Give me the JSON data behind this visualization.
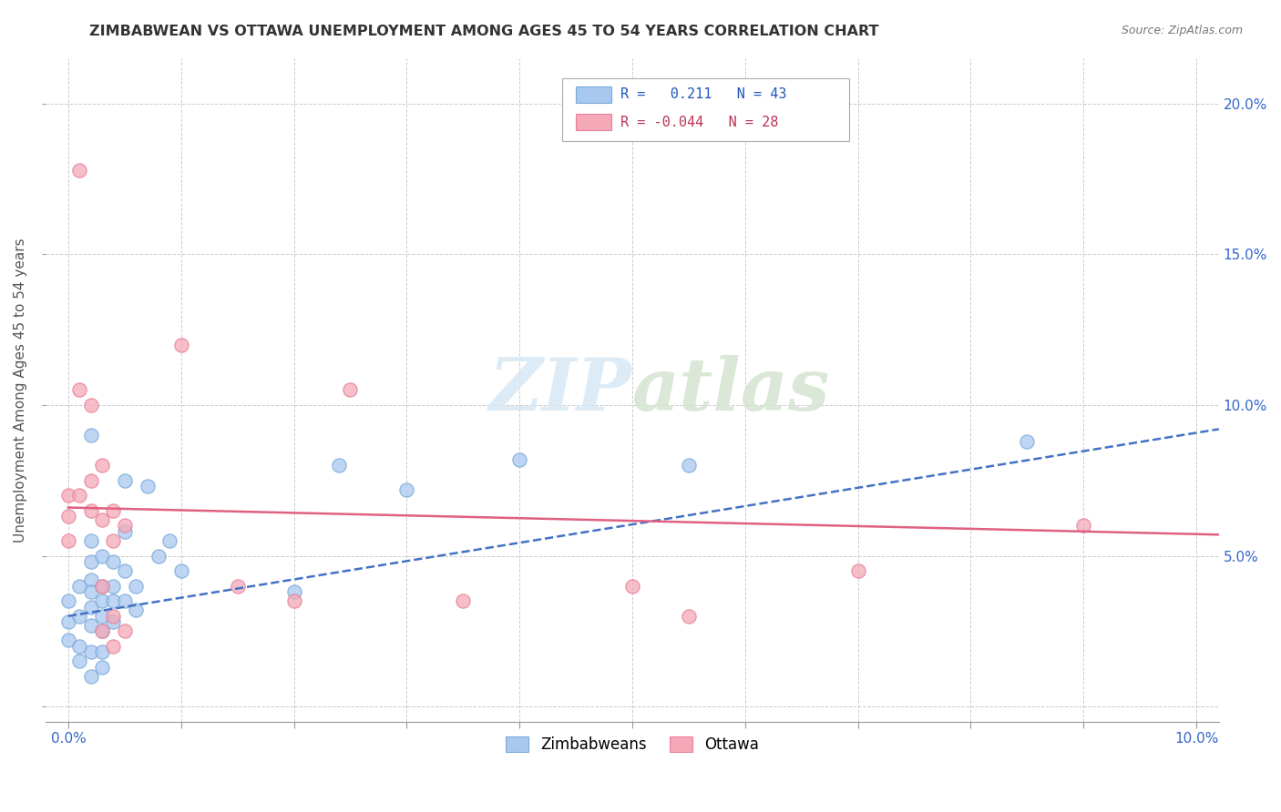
{
  "title": "ZIMBABWEAN VS OTTAWA UNEMPLOYMENT AMONG AGES 45 TO 54 YEARS CORRELATION CHART",
  "source": "Source: ZipAtlas.com",
  "ylabel": "Unemployment Among Ages 45 to 54 years",
  "xlim": [
    -0.002,
    0.102
  ],
  "ylim": [
    -0.005,
    0.215
  ],
  "xticks": [
    0.0,
    0.01,
    0.02,
    0.03,
    0.04,
    0.05,
    0.06,
    0.07,
    0.08,
    0.09,
    0.1
  ],
  "xticklabels": [
    "0.0%",
    "",
    "",
    "",
    "",
    "",
    "",
    "",
    "",
    "",
    "10.0%"
  ],
  "yticks": [
    0.0,
    0.05,
    0.1,
    0.15,
    0.2
  ],
  "yticklabels_left": [
    "",
    "",
    "",
    "",
    ""
  ],
  "yticklabels_right": [
    "",
    "5.0%",
    "10.0%",
    "15.0%",
    "20.0%"
  ],
  "watermark_line1": "ZIP",
  "watermark_line2": "atlas",
  "legend_r_blue": "0.211",
  "legend_n_blue": "43",
  "legend_r_pink": "-0.044",
  "legend_n_pink": "28",
  "blue_color": "#A8C8F0",
  "pink_color": "#F4A8B8",
  "blue_edge_color": "#7BAAD8",
  "pink_edge_color": "#E88098",
  "blue_line_color": "#4472C4",
  "pink_line_color": "#E06080",
  "grid_color": "#CCCCCC",
  "blue_points": [
    [
      0.0,
      0.035
    ],
    [
      0.0,
      0.028
    ],
    [
      0.0,
      0.022
    ],
    [
      0.001,
      0.04
    ],
    [
      0.001,
      0.03
    ],
    [
      0.001,
      0.02
    ],
    [
      0.001,
      0.015
    ],
    [
      0.002,
      0.09
    ],
    [
      0.002,
      0.055
    ],
    [
      0.002,
      0.048
    ],
    [
      0.002,
      0.042
    ],
    [
      0.002,
      0.038
    ],
    [
      0.002,
      0.033
    ],
    [
      0.002,
      0.027
    ],
    [
      0.002,
      0.018
    ],
    [
      0.002,
      0.01
    ],
    [
      0.003,
      0.05
    ],
    [
      0.003,
      0.04
    ],
    [
      0.003,
      0.035
    ],
    [
      0.003,
      0.03
    ],
    [
      0.003,
      0.025
    ],
    [
      0.003,
      0.018
    ],
    [
      0.003,
      0.013
    ],
    [
      0.004,
      0.048
    ],
    [
      0.004,
      0.04
    ],
    [
      0.004,
      0.035
    ],
    [
      0.004,
      0.028
    ],
    [
      0.005,
      0.075
    ],
    [
      0.005,
      0.058
    ],
    [
      0.005,
      0.045
    ],
    [
      0.005,
      0.035
    ],
    [
      0.006,
      0.04
    ],
    [
      0.006,
      0.032
    ],
    [
      0.007,
      0.073
    ],
    [
      0.008,
      0.05
    ],
    [
      0.009,
      0.055
    ],
    [
      0.01,
      0.045
    ],
    [
      0.02,
      0.038
    ],
    [
      0.024,
      0.08
    ],
    [
      0.03,
      0.072
    ],
    [
      0.04,
      0.082
    ],
    [
      0.055,
      0.08
    ],
    [
      0.085,
      0.088
    ]
  ],
  "pink_points": [
    [
      0.0,
      0.07
    ],
    [
      0.0,
      0.063
    ],
    [
      0.0,
      0.055
    ],
    [
      0.001,
      0.178
    ],
    [
      0.001,
      0.105
    ],
    [
      0.001,
      0.07
    ],
    [
      0.002,
      0.1
    ],
    [
      0.002,
      0.075
    ],
    [
      0.002,
      0.065
    ],
    [
      0.003,
      0.08
    ],
    [
      0.003,
      0.062
    ],
    [
      0.003,
      0.04
    ],
    [
      0.003,
      0.025
    ],
    [
      0.004,
      0.065
    ],
    [
      0.004,
      0.055
    ],
    [
      0.004,
      0.03
    ],
    [
      0.004,
      0.02
    ],
    [
      0.005,
      0.06
    ],
    [
      0.005,
      0.025
    ],
    [
      0.01,
      0.12
    ],
    [
      0.015,
      0.04
    ],
    [
      0.02,
      0.035
    ],
    [
      0.025,
      0.105
    ],
    [
      0.035,
      0.035
    ],
    [
      0.05,
      0.04
    ],
    [
      0.055,
      0.03
    ],
    [
      0.07,
      0.045
    ],
    [
      0.09,
      0.06
    ]
  ],
  "blue_trendline_x": [
    0.0,
    0.102
  ],
  "blue_trendline_y": [
    0.03,
    0.092
  ],
  "pink_trendline_x": [
    0.0,
    0.102
  ],
  "pink_trendline_y": [
    0.066,
    0.057
  ]
}
